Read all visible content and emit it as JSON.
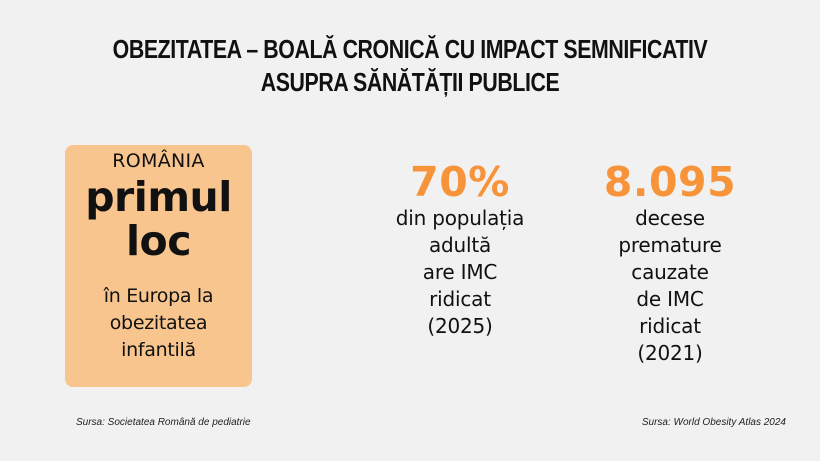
{
  "title": {
    "line1": "OBEZITATEA – BOALĂ CRONICĂ CU IMPACT SEMNIFICATIV",
    "line2": "ASUPRA SĂNĂTĂȚII PUBLICE"
  },
  "colors": {
    "background": "#f1f1f1",
    "card": "#f8c58f",
    "accent": "#f7943a",
    "text": "#111111"
  },
  "rank_card": {
    "country": "ROMÂNIA",
    "headline_line1": "primul",
    "headline_line2": "loc",
    "desc_line1": "în Europa la",
    "desc_line2": "obezitatea",
    "desc_line3": "infantilă"
  },
  "stats": [
    {
      "value": "70%",
      "label_lines": [
        "din populația",
        "adultă",
        "are IMC",
        "ridicat",
        "(2025)"
      ]
    },
    {
      "value": "8.095",
      "label_lines": [
        "decese",
        "premature",
        "cauzate",
        "de IMC",
        "ridicat",
        "(2021)"
      ]
    }
  ],
  "sources": {
    "left": "Sursa: Societatea Română de pediatrie",
    "right": "Sursa: World Obesity Atlas 2024"
  }
}
